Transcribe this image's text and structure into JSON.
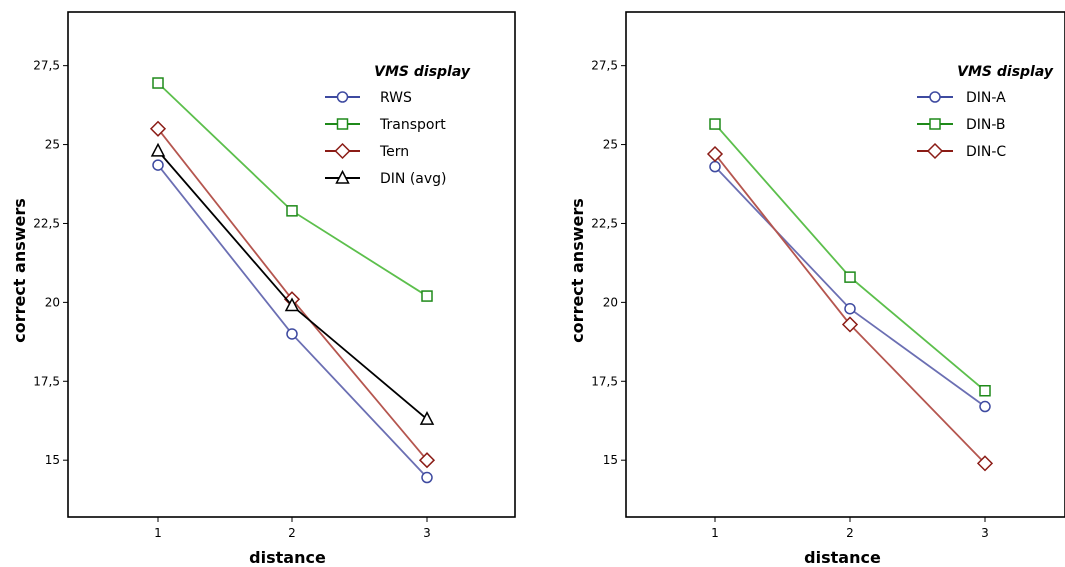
{
  "chart_data": [
    {
      "type": "line",
      "xlabel": "distance",
      "ylabel": "correct answers",
      "x": [
        1,
        2,
        3
      ],
      "x_ticks": [
        "1",
        "2",
        "3"
      ],
      "ylim": [
        13.2,
        29.2
      ],
      "y_ticks": [
        "15",
        "17,5",
        "20",
        "22,5",
        "25",
        "27,5"
      ],
      "y_tick_values": [
        15,
        17.5,
        20,
        22.5,
        25,
        27.5
      ],
      "legend_title": "VMS display",
      "legend_position": "top-right",
      "series": [
        {
          "name": "RWS",
          "values": [
            24.35,
            19.0,
            14.45
          ],
          "line_color": "#6b6fb3",
          "marker_color": "#3e4aa0",
          "marker": "circle"
        },
        {
          "name": "Transport",
          "values": [
            26.95,
            22.9,
            20.2
          ],
          "line_color": "#5cbf4c",
          "marker_color": "#1f8a1a",
          "marker": "square"
        },
        {
          "name": "Tern",
          "values": [
            25.5,
            20.1,
            15.0
          ],
          "line_color": "#b5564f",
          "marker_color": "#8b1c16",
          "marker": "diamond"
        },
        {
          "name": "DIN (avg)",
          "values": [
            24.8,
            19.9,
            16.3
          ],
          "line_color": "#000000",
          "marker_color": "#000000",
          "marker": "triangle"
        }
      ]
    },
    {
      "type": "line",
      "xlabel": "distance",
      "ylabel": "correct answers",
      "x": [
        1,
        2,
        3
      ],
      "x_ticks": [
        "1",
        "2",
        "3"
      ],
      "ylim": [
        13.2,
        29.2
      ],
      "y_ticks": [
        "15",
        "17,5",
        "20",
        "22,5",
        "25",
        "27,5"
      ],
      "y_tick_values": [
        15,
        17.5,
        20,
        22.5,
        25,
        27.5
      ],
      "legend_title": "VMS display",
      "legend_position": "top-right",
      "series": [
        {
          "name": "DIN-A",
          "values": [
            24.3,
            19.8,
            16.7
          ],
          "line_color": "#6b6fb3",
          "marker_color": "#3e4aa0",
          "marker": "circle"
        },
        {
          "name": "DIN-B",
          "values": [
            25.65,
            20.8,
            17.2
          ],
          "line_color": "#5cbf4c",
          "marker_color": "#1f8a1a",
          "marker": "square"
        },
        {
          "name": "DIN-C",
          "values": [
            24.7,
            19.3,
            14.9
          ],
          "line_color": "#b5564f",
          "marker_color": "#8b1c16",
          "marker": "diamond"
        }
      ]
    }
  ]
}
